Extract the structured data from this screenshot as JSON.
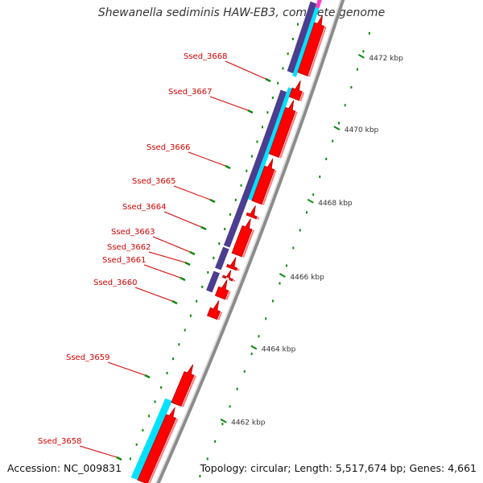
{
  "header": {
    "title": "Shewanella sediminis HAW-EB3, complete genome"
  },
  "footer": {
    "accession": "Accession: NC_009831",
    "topology": "Topology: circular; Length: 5,517,674 bp; Genes: 4,661"
  },
  "scale_labels": [
    "4462 kbp",
    "4464 kbp",
    "4466 kbp",
    "4468 kbp",
    "4470 kbp",
    "4472 kbp"
  ],
  "gene_labels": [
    "Ssed_3658",
    "Ssed_3659",
    "Ssed_3660",
    "Ssed_3661",
    "Ssed_3662",
    "Ssed_3663",
    "Ssed_3664",
    "Ssed_3665",
    "Ssed_3666",
    "Ssed_3667",
    "Ssed_3668"
  ],
  "colors": {
    "cds": "#ff0000",
    "cds_dark": "#b30000",
    "blast_hit": "#4b3d8f",
    "blast_hit_alt": "#00e1ff",
    "blast_hit_pink": "#ff3fbf",
    "backbone": "#8c8c8c",
    "scale_tick": "#0a8a0a",
    "label": "#d40000"
  }
}
